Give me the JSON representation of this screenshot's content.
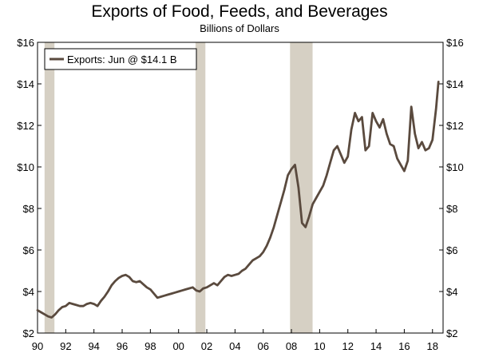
{
  "chart_data": {
    "type": "line",
    "title": "Exports of Food, Feeds, and Beverages",
    "subtitle": "Billions of Dollars",
    "xlabel": "",
    "ylabel": "",
    "xlim": [
      1990,
      2018.75
    ],
    "ylim": [
      2,
      16
    ],
    "x_ticks": [
      1990,
      1992,
      1994,
      1996,
      1998,
      2000,
      2002,
      2004,
      2006,
      2008,
      2010,
      2012,
      2014,
      2016,
      2018
    ],
    "x_tick_labels": [
      "90",
      "92",
      "94",
      "96",
      "98",
      "00",
      "02",
      "04",
      "06",
      "08",
      "10",
      "12",
      "14",
      "16",
      "18"
    ],
    "y_ticks": [
      2,
      4,
      6,
      8,
      10,
      12,
      14,
      16
    ],
    "y_tick_labels": [
      "$2",
      "$4",
      "$6",
      "$8",
      "$10",
      "$12",
      "$14",
      "$16"
    ],
    "grid": false,
    "legend_position": "top-left",
    "line_color": "#5a4a3e",
    "recession_color": "#d6d0c4",
    "recessions": [
      [
        1990.5,
        1991.2
      ],
      [
        2001.2,
        2001.9
      ],
      [
        2007.9,
        2009.5
      ]
    ],
    "series": [
      {
        "name": "Exports: Jun @ $14.1 B",
        "x": [
          1990.0,
          1990.25,
          1990.5,
          1990.75,
          1991.0,
          1991.25,
          1991.5,
          1991.75,
          1992.0,
          1992.25,
          1992.5,
          1992.75,
          1993.0,
          1993.25,
          1993.5,
          1993.75,
          1994.0,
          1994.25,
          1994.5,
          1994.75,
          1995.0,
          1995.25,
          1995.5,
          1995.75,
          1996.0,
          1996.25,
          1996.5,
          1996.75,
          1997.0,
          1997.25,
          1997.5,
          1997.75,
          1998.0,
          1998.25,
          1998.5,
          1998.75,
          1999.0,
          1999.25,
          1999.5,
          1999.75,
          2000.0,
          2000.25,
          2000.5,
          2000.75,
          2001.0,
          2001.25,
          2001.5,
          2001.75,
          2002.0,
          2002.25,
          2002.5,
          2002.75,
          2003.0,
          2003.25,
          2003.5,
          2003.75,
          2004.0,
          2004.25,
          2004.5,
          2004.75,
          2005.0,
          2005.25,
          2005.5,
          2005.75,
          2006.0,
          2006.25,
          2006.5,
          2006.75,
          2007.0,
          2007.25,
          2007.5,
          2007.75,
          2008.0,
          2008.25,
          2008.5,
          2008.75,
          2009.0,
          2009.25,
          2009.5,
          2009.75,
          2010.0,
          2010.25,
          2010.5,
          2010.75,
          2011.0,
          2011.25,
          2011.5,
          2011.75,
          2012.0,
          2012.25,
          2012.5,
          2012.75,
          2013.0,
          2013.25,
          2013.5,
          2013.75,
          2014.0,
          2014.25,
          2014.5,
          2014.75,
          2015.0,
          2015.25,
          2015.5,
          2015.75,
          2016.0,
          2016.25,
          2016.5,
          2016.75,
          2017.0,
          2017.25,
          2017.5,
          2017.75,
          2018.0,
          2018.25,
          2018.42
        ],
        "values": [
          3.1,
          3.0,
          2.9,
          2.8,
          2.75,
          2.9,
          3.1,
          3.25,
          3.3,
          3.45,
          3.4,
          3.35,
          3.3,
          3.3,
          3.4,
          3.45,
          3.4,
          3.3,
          3.55,
          3.75,
          4.0,
          4.3,
          4.5,
          4.65,
          4.75,
          4.8,
          4.7,
          4.5,
          4.45,
          4.5,
          4.35,
          4.2,
          4.1,
          3.9,
          3.7,
          3.75,
          3.8,
          3.85,
          3.9,
          3.95,
          4.0,
          4.05,
          4.1,
          4.15,
          4.2,
          4.05,
          4.0,
          4.15,
          4.2,
          4.3,
          4.4,
          4.3,
          4.5,
          4.7,
          4.8,
          4.75,
          4.8,
          4.85,
          5.0,
          5.1,
          5.3,
          5.5,
          5.6,
          5.7,
          5.9,
          6.2,
          6.6,
          7.1,
          7.7,
          8.3,
          8.9,
          9.6,
          9.9,
          10.1,
          9.0,
          7.3,
          7.1,
          7.6,
          8.2,
          8.5,
          8.8,
          9.1,
          9.6,
          10.2,
          10.8,
          11.0,
          10.6,
          10.2,
          10.5,
          11.8,
          12.6,
          12.2,
          12.4,
          10.8,
          11.0,
          12.6,
          12.2,
          11.9,
          12.3,
          11.6,
          11.1,
          11.0,
          10.4,
          10.1,
          9.8,
          10.3,
          12.9,
          11.6,
          10.9,
          11.2,
          10.8,
          10.9,
          11.3,
          12.8,
          14.1
        ]
      }
    ]
  }
}
